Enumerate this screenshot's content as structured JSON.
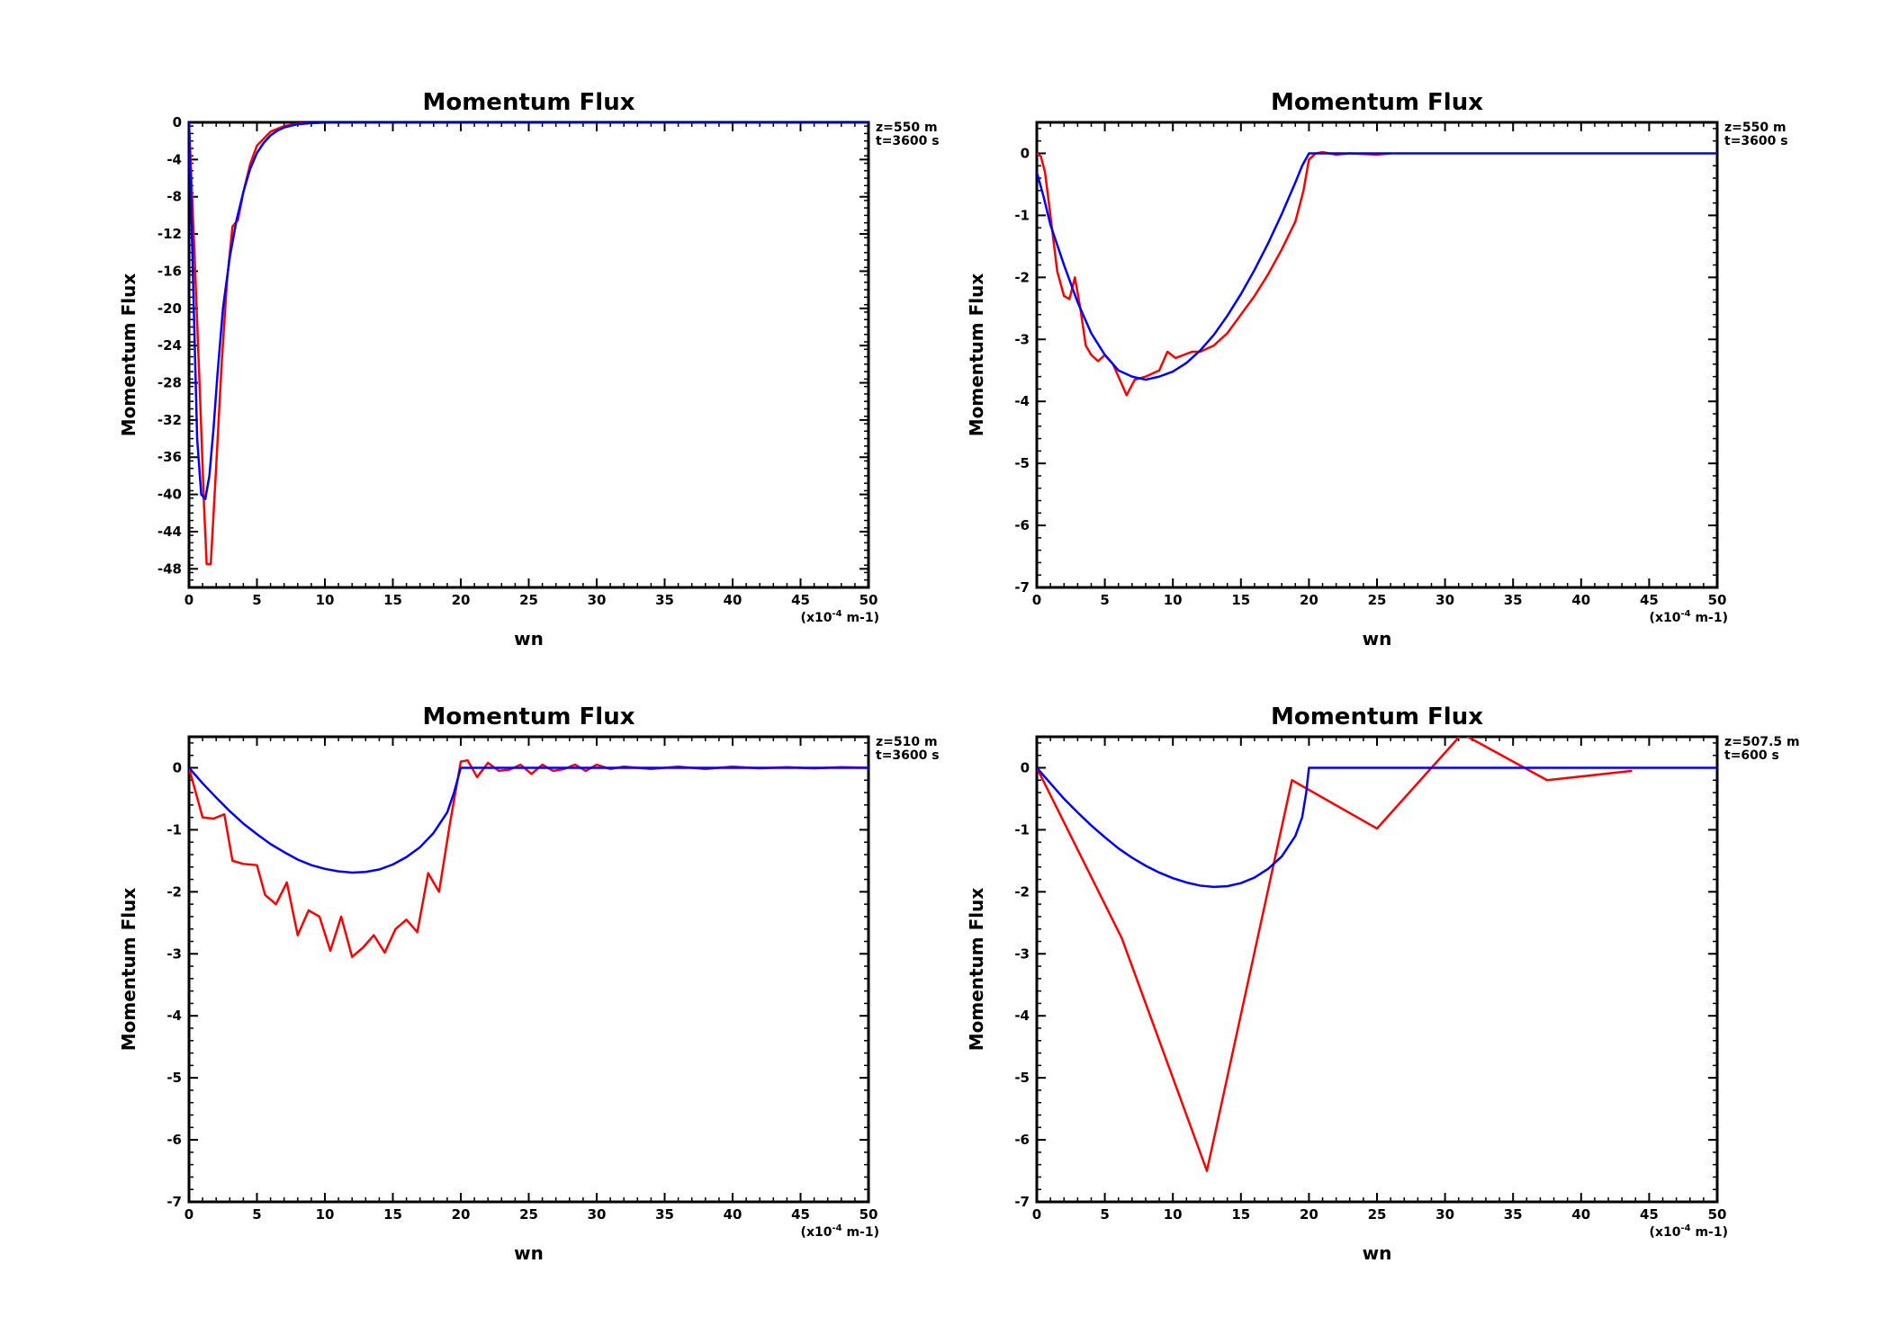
{
  "chart_data": [
    {
      "type": "line",
      "title": "Momentum Flux",
      "xlabel": "wn",
      "ylabel": "Momentum Flux",
      "xunit": "(x10",
      "xunit_exp": "-4",
      "xunit_end": " m-1)",
      "annotation": [
        "z=550 m",
        "t=3600 s"
      ],
      "xlim": [
        0,
        50
      ],
      "ylim": [
        -50,
        0
      ],
      "xticks": [
        0,
        5,
        10,
        15,
        20,
        25,
        30,
        35,
        40,
        45,
        50
      ],
      "xtick_labels": [
        "0",
        "5",
        "10",
        "15",
        "20",
        "25",
        "30",
        "35",
        "40",
        "45",
        "50"
      ],
      "yticks": [
        0,
        -4,
        -8,
        -12,
        -16,
        -20,
        -24,
        -28,
        -32,
        -36,
        -40,
        -44,
        -48
      ],
      "ytick_labels": [
        "0",
        "-4",
        "-8",
        "-12",
        "-16",
        "-20",
        "-24",
        "-28",
        "-32",
        "-36",
        "-40",
        "-44",
        "-48"
      ],
      "grid": false,
      "series": [
        {
          "color": "#ff0000",
          "x": [
            0,
            0.4,
            0.8,
            1.1,
            1.3,
            1.6,
            2.0,
            2.4,
            2.8,
            3.2,
            3.6,
            4.0,
            4.5,
            5.0,
            6.0,
            7.0,
            8.0,
            9.0,
            10.0,
            12.0,
            15.0,
            20.0,
            25.0,
            30.0,
            35.0,
            40.0,
            45.0,
            50.0
          ],
          "y": [
            0,
            -14,
            -29,
            -41,
            -47.5,
            -47.5,
            -37,
            -26,
            -17,
            -11.2,
            -10.5,
            -7.5,
            -4.5,
            -2.5,
            -1.0,
            -0.4,
            -0.15,
            -0.05,
            0,
            0,
            0,
            0,
            0,
            0,
            0,
            0,
            0,
            0
          ]
        },
        {
          "color": "#0000ff",
          "x": [
            0,
            0.3,
            0.6,
            0.9,
            1.2,
            1.5,
            1.8,
            2.1,
            2.5,
            3.0,
            3.5,
            4.0,
            4.5,
            5.0,
            5.5,
            6.0,
            6.5,
            7.0,
            8.0,
            9.0,
            10.0,
            12.0,
            15.0,
            20.0,
            25.0,
            30.0,
            35.0,
            40.0,
            45.0,
            50.0
          ],
          "y": [
            0,
            -17,
            -34,
            -40,
            -40.5,
            -38,
            -33,
            -27,
            -20,
            -14.5,
            -10.5,
            -7.5,
            -5.0,
            -3.3,
            -2.2,
            -1.4,
            -0.9,
            -0.55,
            -0.2,
            -0.08,
            -0.03,
            0,
            0,
            0,
            0,
            0,
            0,
            0,
            0,
            0
          ]
        }
      ]
    },
    {
      "type": "line",
      "title": "Momentum Flux",
      "xlabel": "wn",
      "ylabel": "Momentum Flux",
      "xunit": "(x10",
      "xunit_exp": "-4",
      "xunit_end": " m-1)",
      "annotation": [
        "z=550 m",
        "t=3600 s"
      ],
      "xlim": [
        0,
        50
      ],
      "ylim": [
        -7,
        0.5
      ],
      "xticks": [
        0,
        5,
        10,
        15,
        20,
        25,
        30,
        35,
        40,
        45,
        50
      ],
      "xtick_labels": [
        "0",
        "5",
        "10",
        "15",
        "20",
        "25",
        "30",
        "35",
        "40",
        "45",
        "50"
      ],
      "yticks": [
        0,
        -1,
        -2,
        -3,
        -4,
        -5,
        -6,
        -7
      ],
      "ytick_labels": [
        "0",
        "-1",
        "-2",
        "-3",
        "-4",
        "-5",
        "-6",
        "-7"
      ],
      "grid": false,
      "series": [
        {
          "color": "#ff0000",
          "x": [
            0,
            0.3,
            0.6,
            1.0,
            1.5,
            2.0,
            2.4,
            2.8,
            3.2,
            3.6,
            4.0,
            4.5,
            5.0,
            5.6,
            6.0,
            6.6,
            7.2,
            8.0,
            9.0,
            9.6,
            10.2,
            10.8,
            11.4,
            12.0,
            13.0,
            14.0,
            15.0,
            16.0,
            17.0,
            18.0,
            19.0,
            19.6,
            20.0,
            20.5,
            21.0,
            22.0,
            23.0,
            25.0,
            26.0
          ],
          "y": [
            0,
            -0.05,
            -0.3,
            -1.0,
            -1.9,
            -2.3,
            -2.35,
            -2.0,
            -2.5,
            -3.1,
            -3.25,
            -3.35,
            -3.25,
            -3.4,
            -3.6,
            -3.9,
            -3.65,
            -3.6,
            -3.5,
            -3.2,
            -3.3,
            -3.25,
            -3.2,
            -3.2,
            -3.1,
            -2.9,
            -2.6,
            -2.3,
            -1.95,
            -1.55,
            -1.1,
            -0.6,
            -0.1,
            0.0,
            0.02,
            -0.02,
            0.0,
            -0.02,
            0.0
          ]
        },
        {
          "color": "#0000ff",
          "x": [
            0,
            0.5,
            1,
            2,
            3,
            4,
            5,
            6,
            7,
            8,
            9,
            10,
            11,
            12,
            13,
            14,
            15,
            16,
            17,
            18,
            19,
            19.5,
            20,
            21,
            25,
            30,
            35,
            40,
            45,
            50
          ],
          "y": [
            -0.3,
            -0.7,
            -1.15,
            -1.8,
            -2.4,
            -2.9,
            -3.25,
            -3.5,
            -3.6,
            -3.65,
            -3.6,
            -3.52,
            -3.38,
            -3.18,
            -2.93,
            -2.62,
            -2.27,
            -1.88,
            -1.45,
            -0.98,
            -0.47,
            -0.2,
            0,
            0,
            0,
            0,
            0,
            0,
            0,
            0
          ]
        }
      ]
    },
    {
      "type": "line",
      "title": "Momentum Flux",
      "xlabel": "wn",
      "ylabel": "Momentum Flux",
      "xunit": "(x10",
      "xunit_exp": "-4",
      "xunit_end": " m-1)",
      "annotation": [
        "z=510 m",
        "t=3600 s"
      ],
      "xlim": [
        0,
        50
      ],
      "ylim": [
        -7,
        0.5
      ],
      "xticks": [
        0,
        5,
        10,
        15,
        20,
        25,
        30,
        35,
        40,
        45,
        50
      ],
      "xtick_labels": [
        "0",
        "5",
        "10",
        "15",
        "20",
        "25",
        "30",
        "35",
        "40",
        "45",
        "50"
      ],
      "yticks": [
        0,
        -1,
        -2,
        -3,
        -4,
        -5,
        -6,
        -7
      ],
      "ytick_labels": [
        "0",
        "-1",
        "-2",
        "-3",
        "-4",
        "-5",
        "-6",
        "-7"
      ],
      "grid": false,
      "series": [
        {
          "color": "#ff0000",
          "x": [
            0,
            1.0,
            1.8,
            2.6,
            3.2,
            4.0,
            5.0,
            5.6,
            6.4,
            7.2,
            8.0,
            8.8,
            9.6,
            10.4,
            11.2,
            12.0,
            12.8,
            13.6,
            14.4,
            15.2,
            16.0,
            16.8,
            17.6,
            18.4,
            19.2,
            20.0,
            20.5,
            21.2,
            22.0,
            22.8,
            23.6,
            24.4,
            25.2,
            26.0,
            26.8,
            27.6,
            28.4,
            29.2,
            30.0,
            31.0,
            32.0,
            34.0,
            36.0,
            38.0,
            40.0,
            42.0,
            44.0,
            46.0,
            48.0,
            50.0
          ],
          "y": [
            0,
            -0.8,
            -0.82,
            -0.75,
            -1.5,
            -1.55,
            -1.57,
            -2.05,
            -2.2,
            -1.85,
            -2.7,
            -2.3,
            -2.4,
            -2.95,
            -2.4,
            -3.05,
            -2.9,
            -2.7,
            -2.98,
            -2.6,
            -2.45,
            -2.65,
            -1.7,
            -2.0,
            -0.9,
            0.1,
            0.12,
            -0.15,
            0.08,
            -0.05,
            -0.03,
            0.05,
            -0.1,
            0.05,
            -0.05,
            -0.02,
            0.05,
            -0.05,
            0.05,
            -0.02,
            0.02,
            -0.02,
            0.02,
            -0.02,
            0.02,
            -0.01,
            0.01,
            -0.01,
            0.01,
            0
          ]
        },
        {
          "color": "#0000ff",
          "x": [
            0,
            1,
            2,
            3,
            4,
            5,
            6,
            7,
            8,
            9,
            10,
            11,
            12,
            13,
            14,
            15,
            16,
            17,
            18,
            19,
            19.5,
            20,
            21,
            25,
            30,
            35,
            40,
            45,
            50
          ],
          "y": [
            0,
            -0.25,
            -0.48,
            -0.7,
            -0.9,
            -1.07,
            -1.23,
            -1.36,
            -1.48,
            -1.57,
            -1.63,
            -1.67,
            -1.69,
            -1.68,
            -1.64,
            -1.56,
            -1.44,
            -1.28,
            -1.05,
            -0.72,
            -0.4,
            0,
            0,
            0,
            0,
            0,
            0,
            0,
            0
          ]
        }
      ]
    },
    {
      "type": "line",
      "title": "Momentum Flux",
      "xlabel": "wn",
      "ylabel": "Momentum Flux",
      "xunit": "(x10",
      "xunit_exp": "-4",
      "xunit_end": " m-1)",
      "annotation": [
        "z=507.5 m",
        "t=600 s"
      ],
      "xlim": [
        0,
        50
      ],
      "ylim": [
        -7,
        0.5
      ],
      "xticks": [
        0,
        5,
        10,
        15,
        20,
        25,
        30,
        35,
        40,
        45,
        50
      ],
      "xtick_labels": [
        "0",
        "5",
        "10",
        "15",
        "20",
        "25",
        "30",
        "35",
        "40",
        "45",
        "50"
      ],
      "yticks": [
        0,
        -1,
        -2,
        -3,
        -4,
        -5,
        -6,
        -7
      ],
      "ytick_labels": [
        "0",
        "-1",
        "-2",
        "-3",
        "-4",
        "-5",
        "-6",
        "-7"
      ],
      "grid": false,
      "series": [
        {
          "color": "#ff0000",
          "x": [
            0,
            6.25,
            12.5,
            18.75,
            25.0,
            31.25,
            37.5,
            43.75
          ],
          "y": [
            0,
            -2.75,
            -6.5,
            -0.2,
            -0.98,
            0.55,
            -0.2,
            -0.05
          ]
        },
        {
          "color": "#0000ff",
          "x": [
            0,
            1,
            2,
            3,
            4,
            5,
            6,
            7,
            8,
            9,
            10,
            11,
            12,
            13,
            14,
            15,
            16,
            17,
            18,
            19,
            19.5,
            19.8,
            20,
            25,
            30,
            35,
            40,
            45,
            50
          ],
          "y": [
            0,
            -0.25,
            -0.5,
            -0.72,
            -0.93,
            -1.12,
            -1.3,
            -1.45,
            -1.58,
            -1.69,
            -1.78,
            -1.85,
            -1.9,
            -1.92,
            -1.91,
            -1.86,
            -1.77,
            -1.63,
            -1.43,
            -1.1,
            -0.8,
            -0.4,
            0,
            0,
            0,
            0,
            0,
            0,
            0
          ]
        }
      ]
    }
  ]
}
